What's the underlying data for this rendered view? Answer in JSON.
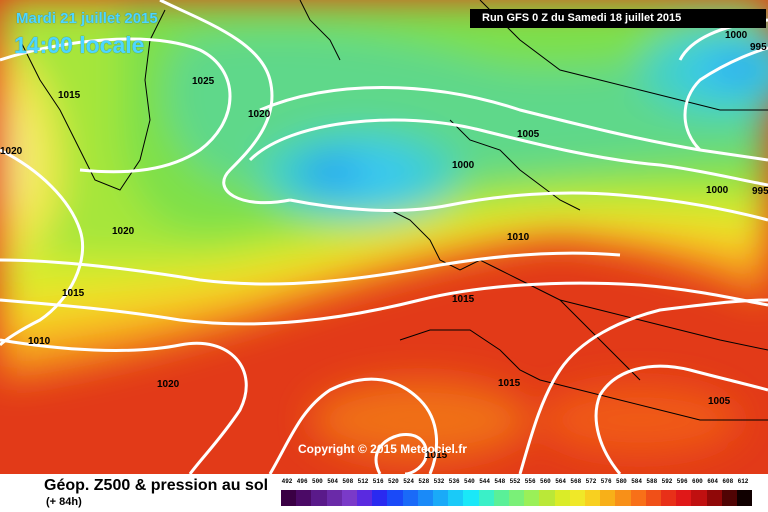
{
  "header": {
    "date": "Mardi 21 juillet 2015",
    "local_time": "14:00 locale",
    "run": "Run GFS 0 Z du Samedi 18 juillet 2015"
  },
  "copyright": "Copyright © 2015 Meteociel.fr",
  "legend": {
    "title": "Géop. Z500 & pression au sol",
    "subtitle": "(+ 84h)",
    "scale_values": [
      "492",
      "496",
      "500",
      "504",
      "508",
      "512",
      "516",
      "520",
      "524",
      "528",
      "532",
      "536",
      "540",
      "544",
      "548",
      "552",
      "556",
      "560",
      "564",
      "568",
      "572",
      "576",
      "580",
      "584",
      "588",
      "592",
      "596",
      "600",
      "604",
      "608",
      "612"
    ],
    "scale_colors": [
      "#3a0044",
      "#4b0a66",
      "#5a1a8a",
      "#6a2aa8",
      "#7a3ac8",
      "#5a2ae0",
      "#2a2af0",
      "#1a4af8",
      "#1a6af8",
      "#1a8af8",
      "#1aaaf8",
      "#1acaf8",
      "#1ae8f8",
      "#3af0c8",
      "#5af098",
      "#7af078",
      "#9af058",
      "#bae838",
      "#daec28",
      "#f0e828",
      "#f8d020",
      "#f8b018",
      "#f89018",
      "#f87018",
      "#f05018",
      "#e83018",
      "#e01818",
      "#c01010",
      "#900808",
      "#500404",
      "#100000"
    ]
  },
  "isobars": [
    {
      "label": "1025"
    },
    {
      "label": "1015"
    },
    {
      "label": "1020"
    },
    {
      "label": "1020"
    },
    {
      "label": "1020"
    },
    {
      "label": "1015"
    },
    {
      "label": "1010"
    },
    {
      "label": "1020"
    },
    {
      "label": "1005"
    },
    {
      "label": "1000"
    },
    {
      "label": "1010"
    },
    {
      "label": "1015"
    },
    {
      "label": "1015"
    },
    {
      "label": "1000"
    },
    {
      "label": "995"
    },
    {
      "label": "1000"
    },
    {
      "label": "995"
    },
    {
      "label": "1005"
    },
    {
      "label": "1015"
    }
  ]
}
